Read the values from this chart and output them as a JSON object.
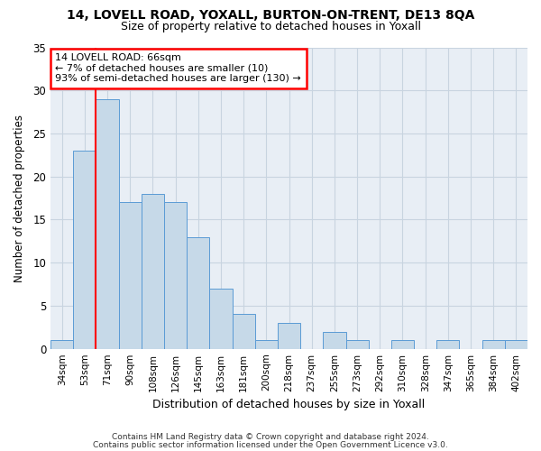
{
  "title": "14, LOVELL ROAD, YOXALL, BURTON-ON-TRENT, DE13 8QA",
  "subtitle": "Size of property relative to detached houses in Yoxall",
  "xlabel": "Distribution of detached houses by size in Yoxall",
  "ylabel": "Number of detached properties",
  "footnote1": "Contains HM Land Registry data © Crown copyright and database right 2024.",
  "footnote2": "Contains public sector information licensed under the Open Government Licence v3.0.",
  "bar_labels": [
    "34sqm",
    "53sqm",
    "71sqm",
    "90sqm",
    "108sqm",
    "126sqm",
    "145sqm",
    "163sqm",
    "181sqm",
    "200sqm",
    "218sqm",
    "237sqm",
    "255sqm",
    "273sqm",
    "292sqm",
    "310sqm",
    "328sqm",
    "347sqm",
    "365sqm",
    "384sqm",
    "402sqm"
  ],
  "bar_values": [
    1,
    23,
    29,
    17,
    18,
    17,
    13,
    7,
    4,
    1,
    3,
    0,
    2,
    1,
    0,
    1,
    0,
    1,
    0,
    1,
    1
  ],
  "bar_color": "#c6d9e8",
  "bar_edge_color": "#5b9bd5",
  "annotation_text": "14 LOVELL ROAD: 66sqm\n← 7% of detached houses are smaller (10)\n93% of semi-detached houses are larger (130) →",
  "annotation_box_color": "white",
  "annotation_box_edge": "red",
  "ylim": [
    0,
    35
  ],
  "yticks": [
    0,
    5,
    10,
    15,
    20,
    25,
    30,
    35
  ],
  "grid_color": "#c8d4e0",
  "bg_color": "#e8eef5",
  "bar_width": 1.0
}
